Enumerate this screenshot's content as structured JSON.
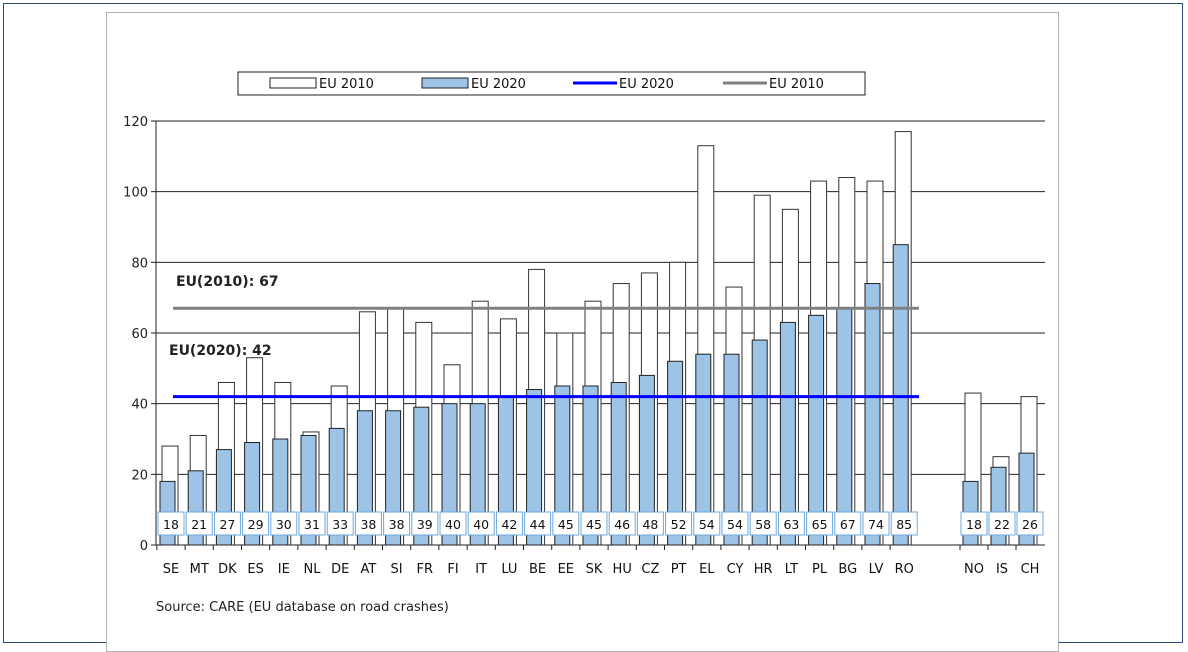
{
  "chart_data": {
    "type": "bar",
    "categories": [
      "SE",
      "MT",
      "DK",
      "ES",
      "IE",
      "NL",
      "DE",
      "AT",
      "SI",
      "FR",
      "FI",
      "IT",
      "LU",
      "BE",
      "EE",
      "SK",
      "HU",
      "CZ",
      "PT",
      "EL",
      "CY",
      "HR",
      "LT",
      "PL",
      "BG",
      "LV",
      "RO"
    ],
    "extra_categories": [
      "NO",
      "IS",
      "CH"
    ],
    "series": [
      {
        "name": "EU 2010",
        "style": "white-bar",
        "values": [
          28,
          31,
          46,
          53,
          46,
          32,
          45,
          66,
          67,
          63,
          51,
          69,
          64,
          78,
          60,
          69,
          74,
          77,
          80,
          113,
          73,
          99,
          95,
          103,
          104,
          103,
          117
        ],
        "extra_values": [
          43,
          25,
          42
        ]
      },
      {
        "name": "EU 2020",
        "style": "blue-bar",
        "values": [
          18,
          21,
          27,
          29,
          30,
          31,
          33,
          38,
          38,
          39,
          40,
          40,
          42,
          44,
          45,
          45,
          46,
          48,
          52,
          54,
          54,
          58,
          63,
          65,
          67,
          74,
          85
        ],
        "extra_values": [
          18,
          22,
          26
        ]
      }
    ],
    "reference_lines": [
      {
        "name": "EU 2020",
        "value": 42,
        "color": "#0000ff",
        "label": "EU(2020): 42"
      },
      {
        "name": "EU 2010",
        "value": 67,
        "color": "#808080",
        "label": "EU(2010): 67"
      }
    ],
    "data_labels": [
      "18",
      "21",
      "27",
      "29",
      "30",
      "31",
      "33",
      "38",
      "38",
      "39",
      "40",
      "40",
      "42",
      "44",
      "45",
      "45",
      "46",
      "48",
      "52",
      "54",
      "54",
      "58",
      "63",
      "65",
      "67",
      "74",
      "85"
    ],
    "extra_data_labels": [
      "18",
      "22",
      "26"
    ],
    "yticks": [
      "0",
      "20",
      "40",
      "60",
      "80",
      "100",
      "120"
    ],
    "ylim": [
      0,
      120
    ],
    "grid": true,
    "legend_position": "top",
    "legend": [
      "EU 2010",
      "EU 2020",
      "EU 2020",
      "EU 2010"
    ],
    "source": "Source: CARE (EU database on road crashes)",
    "colors": {
      "bar2010": "#ffffff",
      "bar2020": "#9dc3e6",
      "line2020": "#0000ff",
      "line2010": "#808080",
      "label_border": "#6fa8dc"
    }
  }
}
